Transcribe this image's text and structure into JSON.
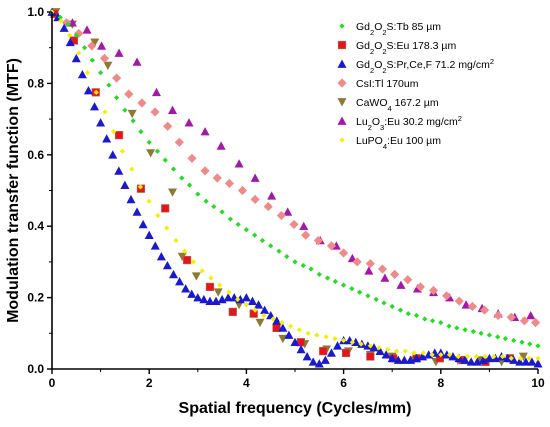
{
  "chart_data": {
    "type": "scatter",
    "xlabel": "Spatial frequency (Cycles/mm)",
    "ylabel": "Modulation transfer function (MTF)",
    "xlim": [
      0,
      10
    ],
    "ylim": [
      0,
      1.0
    ],
    "x_ticks": [
      "0",
      "2",
      "4",
      "6",
      "8",
      "10"
    ],
    "y_ticks": [
      "0.0",
      "0.2",
      "0.4",
      "0.6",
      "0.8",
      "1.0"
    ],
    "grid": false,
    "legend_position": "top-right",
    "series": [
      {
        "name_parts": [
          [
            "Gd",
            ""
          ],
          [
            "2",
            "sub"
          ],
          [
            "O",
            ""
          ],
          [
            "2",
            "sub"
          ],
          [
            "S:Tb 85 µm",
            ""
          ]
        ],
        "color": "#22dd22",
        "marker": "diamond-small",
        "x": [
          0,
          0.17,
          0.33,
          0.5,
          0.67,
          0.83,
          1.0,
          1.17,
          1.33,
          1.5,
          1.67,
          1.83,
          2.0,
          2.17,
          2.33,
          2.5,
          2.67,
          2.83,
          3.0,
          3.17,
          3.33,
          3.5,
          3.67,
          3.83,
          4.0,
          4.17,
          4.33,
          4.5,
          4.67,
          4.83,
          5.0,
          5.17,
          5.33,
          5.5,
          5.67,
          5.83,
          6.0,
          6.17,
          6.33,
          6.5,
          6.67,
          6.83,
          7.0,
          7.17,
          7.33,
          7.5,
          7.67,
          7.83,
          8.0,
          8.17,
          8.33,
          8.5,
          8.67,
          8.83,
          9.0,
          9.17,
          9.33,
          9.5,
          9.67,
          9.83,
          10.0
        ],
        "y": [
          1.0,
          0.985,
          0.965,
          0.935,
          0.9,
          0.865,
          0.83,
          0.795,
          0.76,
          0.725,
          0.695,
          0.665,
          0.635,
          0.61,
          0.585,
          0.56,
          0.535,
          0.515,
          0.49,
          0.47,
          0.455,
          0.44,
          0.42,
          0.405,
          0.39,
          0.375,
          0.36,
          0.345,
          0.33,
          0.315,
          0.3,
          0.29,
          0.28,
          0.265,
          0.255,
          0.245,
          0.235,
          0.225,
          0.215,
          0.205,
          0.195,
          0.185,
          0.175,
          0.165,
          0.155,
          0.15,
          0.14,
          0.135,
          0.13,
          0.12,
          0.115,
          0.11,
          0.105,
          0.1,
          0.095,
          0.09,
          0.085,
          0.08,
          0.075,
          0.07,
          0.065
        ]
      },
      {
        "name_parts": [
          [
            "Gd",
            ""
          ],
          [
            "2",
            "sub"
          ],
          [
            "O",
            ""
          ],
          [
            "2",
            "sub"
          ],
          [
            "S:Eu 178.3 µm",
            ""
          ]
        ],
        "color": "#e8131c",
        "marker": "square",
        "x": [
          0.05,
          0.45,
          0.9,
          1.38,
          1.83,
          2.33,
          2.78,
          3.25,
          3.72,
          4.15,
          4.62,
          5.12,
          5.58,
          6.05,
          6.55,
          7.02,
          7.5,
          7.98,
          8.45,
          8.92,
          9.42
        ],
        "y": [
          0.995,
          0.92,
          0.775,
          0.655,
          0.505,
          0.45,
          0.305,
          0.23,
          0.16,
          0.155,
          0.115,
          0.075,
          0.05,
          0.045,
          0.035,
          0.03,
          0.03,
          0.03,
          0.025,
          0.02,
          0.03
        ]
      },
      {
        "name_parts": [
          [
            "Gd",
            ""
          ],
          [
            "2",
            "sub"
          ],
          [
            "O",
            ""
          ],
          [
            "2",
            "sub"
          ],
          [
            "S:Pr,Ce,F 71.2 mg/cm",
            ""
          ],
          [
            "2",
            "sup"
          ]
        ],
        "color": "#1a1acc",
        "marker": "triangle",
        "x": [
          0.0,
          0.125,
          0.25,
          0.375,
          0.5,
          0.625,
          0.75,
          0.875,
          1.0,
          1.125,
          1.25,
          1.375,
          1.5,
          1.625,
          1.75,
          1.875,
          2.0,
          2.125,
          2.25,
          2.375,
          2.5,
          2.625,
          2.75,
          2.875,
          3.0,
          3.125,
          3.25,
          3.375,
          3.5,
          3.625,
          3.75,
          3.875,
          4.0,
          4.125,
          4.25,
          4.375,
          4.5,
          4.625,
          4.75,
          4.875,
          5.0,
          5.125,
          5.25,
          5.375,
          5.5,
          5.625,
          5.75,
          5.875,
          6.0,
          6.125,
          6.25,
          6.375,
          6.5,
          6.625,
          6.75,
          6.875,
          7.0,
          7.125,
          7.25,
          7.375,
          7.5,
          7.625,
          7.75,
          7.875,
          8.0,
          8.125,
          8.25,
          8.375,
          8.5,
          8.625,
          8.75,
          8.875,
          9.0,
          9.125,
          9.25,
          9.375,
          9.5,
          9.625,
          9.75,
          9.875,
          10.0
        ],
        "y": [
          1.0,
          0.985,
          0.955,
          0.915,
          0.87,
          0.825,
          0.78,
          0.735,
          0.69,
          0.645,
          0.6,
          0.555,
          0.515,
          0.475,
          0.44,
          0.405,
          0.375,
          0.345,
          0.315,
          0.29,
          0.265,
          0.245,
          0.225,
          0.21,
          0.2,
          0.195,
          0.19,
          0.19,
          0.195,
          0.2,
          0.2,
          0.195,
          0.2,
          0.19,
          0.18,
          0.165,
          0.15,
          0.135,
          0.115,
          0.095,
          0.075,
          0.055,
          0.035,
          0.02,
          0.015,
          0.025,
          0.045,
          0.065,
          0.08,
          0.08,
          0.075,
          0.07,
          0.065,
          0.06,
          0.05,
          0.04,
          0.03,
          0.025,
          0.025,
          0.025,
          0.03,
          0.035,
          0.04,
          0.045,
          0.045,
          0.04,
          0.035,
          0.03,
          0.025,
          0.02,
          0.02,
          0.025,
          0.03,
          0.03,
          0.035,
          0.03,
          0.025,
          0.02,
          0.02,
          0.02,
          0.015
        ]
      },
      {
        "name_parts": [
          [
            "CsI:Tl 170um",
            ""
          ]
        ],
        "color": "#f08a88",
        "marker": "diamond",
        "x": [
          0.05,
          0.3,
          0.55,
          0.82,
          1.08,
          1.33,
          1.58,
          1.85,
          2.12,
          2.38,
          2.62,
          2.88,
          3.15,
          3.4,
          3.65,
          3.92,
          4.18,
          4.45,
          4.72,
          4.98,
          5.22,
          5.48,
          5.75,
          6.0,
          6.28,
          6.55,
          6.8,
          7.05,
          7.32,
          7.58,
          7.85,
          8.12,
          8.38,
          8.65,
          8.9,
          9.18,
          9.45,
          9.72,
          9.95
        ],
        "y": [
          0.995,
          0.97,
          0.94,
          0.905,
          0.87,
          0.815,
          0.77,
          0.745,
          0.72,
          0.68,
          0.635,
          0.59,
          0.555,
          0.535,
          0.52,
          0.5,
          0.475,
          0.455,
          0.43,
          0.405,
          0.375,
          0.36,
          0.345,
          0.325,
          0.3,
          0.295,
          0.28,
          0.265,
          0.25,
          0.23,
          0.22,
          0.205,
          0.19,
          0.175,
          0.165,
          0.15,
          0.145,
          0.135,
          0.13
        ]
      },
      {
        "name_parts": [
          [
            "CaWO",
            ""
          ],
          [
            "4",
            "sub"
          ],
          [
            " 167.2 µm",
            ""
          ]
        ],
        "color": "#8b7a34",
        "marker": "triangle-down",
        "x": [
          0.08,
          0.42,
          0.88,
          1.15,
          1.65,
          2.03,
          2.48,
          2.68,
          2.97,
          3.42,
          3.85,
          4.28,
          4.75,
          5.2,
          5.65,
          6.1,
          6.55,
          7.0,
          7.45,
          7.9,
          8.35,
          8.8,
          9.25,
          9.7
        ],
        "y": [
          1.0,
          0.965,
          0.915,
          0.85,
          0.715,
          0.605,
          0.495,
          0.315,
          0.26,
          0.215,
          0.18,
          0.13,
          0.085,
          0.07,
          0.055,
          0.05,
          0.04,
          0.035,
          0.025,
          0.02,
          0.025,
          0.025,
          0.02,
          0.035
        ]
      },
      {
        "name_parts": [
          [
            "Lu",
            ""
          ],
          [
            "2",
            "sub"
          ],
          [
            "O",
            ""
          ],
          [
            "3",
            "sub"
          ],
          [
            ":Eu 30.2 mg/cm",
            ""
          ],
          [
            "2",
            "sup"
          ]
        ],
        "color": "#a318a8",
        "marker": "triangle",
        "x": [
          0.12,
          0.42,
          0.72,
          1.02,
          1.38,
          1.75,
          2.15,
          2.48,
          2.82,
          3.15,
          3.48,
          3.85,
          4.18,
          4.52,
          4.85,
          5.18,
          5.52,
          5.85,
          6.18,
          6.52,
          6.85,
          7.18,
          7.52,
          7.85,
          8.18,
          8.52,
          8.85,
          9.18,
          9.52,
          9.85
        ],
        "y": [
          0.985,
          0.97,
          0.95,
          0.905,
          0.885,
          0.86,
          0.775,
          0.725,
          0.69,
          0.665,
          0.625,
          0.575,
          0.535,
          0.485,
          0.44,
          0.4,
          0.36,
          0.345,
          0.31,
          0.275,
          0.255,
          0.235,
          0.225,
          0.215,
          0.2,
          0.18,
          0.17,
          0.155,
          0.145,
          0.15
        ]
      },
      {
        "name_parts": [
          [
            "LuPO",
            ""
          ],
          [
            "4",
            "sub"
          ],
          [
            ":Eu 100 µm",
            ""
          ]
        ],
        "color": "#f5f000",
        "marker": "diamond-small",
        "x": [
          0.0,
          0.18,
          0.36,
          0.55,
          0.73,
          0.91,
          1.09,
          1.27,
          1.45,
          1.64,
          1.82,
          2.0,
          2.18,
          2.36,
          2.55,
          2.73,
          2.91,
          3.09,
          3.27,
          3.45,
          3.64,
          3.82,
          4.0,
          4.18,
          4.36,
          4.55,
          4.73,
          4.91,
          5.09,
          5.27,
          5.45,
          5.64,
          5.82,
          6.0,
          6.18,
          6.36,
          6.55,
          6.73,
          6.91,
          7.09,
          7.27,
          7.45,
          7.64,
          7.82,
          8.0,
          8.18,
          8.36,
          8.55,
          8.73,
          8.91,
          9.09,
          9.27,
          9.45,
          9.64,
          9.82,
          10.0
        ],
        "y": [
          1.0,
          0.975,
          0.935,
          0.885,
          0.83,
          0.775,
          0.72,
          0.665,
          0.61,
          0.56,
          0.51,
          0.47,
          0.43,
          0.395,
          0.36,
          0.33,
          0.3,
          0.275,
          0.255,
          0.235,
          0.215,
          0.195,
          0.18,
          0.165,
          0.15,
          0.14,
          0.13,
          0.12,
          0.11,
          0.1,
          0.095,
          0.09,
          0.085,
          0.08,
          0.075,
          0.07,
          0.065,
          0.06,
          0.055,
          0.05,
          0.05,
          0.045,
          0.045,
          0.04,
          0.04,
          0.04,
          0.035,
          0.035,
          0.035,
          0.035,
          0.035,
          0.035,
          0.03,
          0.03,
          0.03,
          0.03
        ]
      }
    ]
  }
}
